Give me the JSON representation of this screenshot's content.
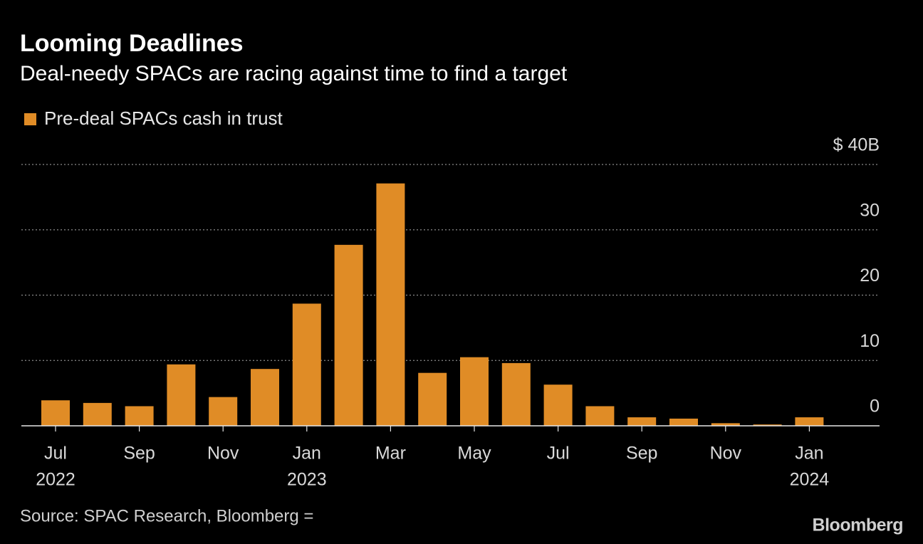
{
  "chart_data": {
    "type": "bar",
    "title": "Looming Deadlines",
    "subtitle": "Deal-needy SPACs are racing against time to find a target",
    "categories": [
      "Jul",
      null,
      "Sep",
      null,
      "Nov",
      null,
      "Jan",
      null,
      "Mar",
      null,
      "May",
      null,
      "Jul",
      null,
      "Sep",
      null,
      "Nov",
      null,
      "Jan"
    ],
    "category_years": [
      "2022",
      null,
      null,
      null,
      null,
      null,
      "2023",
      null,
      null,
      null,
      null,
      null,
      null,
      null,
      null,
      null,
      null,
      null,
      "2024"
    ],
    "series": [
      {
        "name": "Pre-deal SPACs cash in trust",
        "color": "#e08c26",
        "values": [
          3.9,
          3.5,
          3.0,
          9.4,
          4.4,
          8.7,
          18.7,
          27.7,
          37.1,
          8.1,
          10.5,
          9.6,
          6.3,
          3.0,
          1.3,
          1.1,
          0.4,
          0.2,
          1.3
        ]
      }
    ],
    "ylim": [
      0,
      40
    ],
    "yticks": [
      0,
      10,
      20,
      30,
      {
        "value": 40,
        "label": "$ 40B"
      }
    ],
    "grid": true,
    "source": "Source: SPAC Research, Bloomberg =",
    "brand": "Bloomberg"
  }
}
